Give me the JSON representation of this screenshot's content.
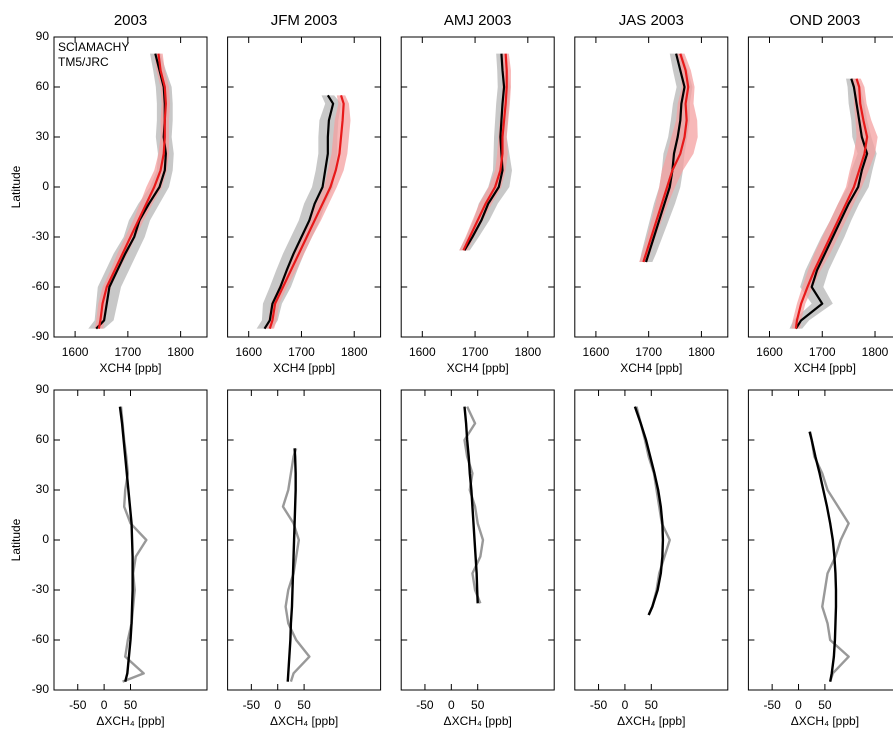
{
  "chart_data": [
    {
      "type": "line",
      "title": "2003",
      "xlabel": "XCH4 [ppb]",
      "ylabel": "Latitude",
      "legend": "upper left",
      "ytick_labels": true,
      "xlim": [
        1560,
        1850
      ],
      "ylim": [
        -90,
        90
      ],
      "xticks": [
        1600,
        1700,
        1800
      ],
      "yticks": [
        -90,
        -60,
        -30,
        0,
        30,
        60,
        90
      ],
      "y": [
        -85,
        -80,
        -70,
        -60,
        -50,
        -40,
        -30,
        -20,
        -10,
        0,
        10,
        20,
        30,
        40,
        50,
        60,
        70,
        80
      ],
      "series": [
        {
          "name": "SCIAMACHY",
          "color": "#000000",
          "band_color": "#c8c8c8",
          "values": [
            1640,
            1655,
            1660,
            1665,
            1680,
            1695,
            1712,
            1722,
            1740,
            1760,
            1770,
            1772,
            1768,
            1770,
            1770,
            1768,
            1760,
            1752
          ],
          "errors": [
            15,
            18,
            20,
            22,
            22,
            22,
            20,
            20,
            20,
            18,
            15,
            15,
            15,
            15,
            15,
            15,
            12,
            10
          ]
        },
        {
          "name": "TM5/JRC",
          "color": "#e8191a",
          "band_color": "#f4a0a0",
          "values": [
            1645,
            1648,
            1652,
            1660,
            1675,
            1690,
            1705,
            1720,
            1735,
            1750,
            1762,
            1768,
            1770,
            1770,
            1772,
            1770,
            1762,
            1758
          ],
          "errors": [
            8,
            8,
            8,
            8,
            8,
            10,
            10,
            10,
            12,
            15,
            12,
            10,
            8,
            8,
            8,
            8,
            8,
            8
          ]
        }
      ]
    },
    {
      "type": "line",
      "title": "JFM 2003",
      "xlabel": "XCH4 [ppb]",
      "ytick_labels": false,
      "xlim": [
        1560,
        1850
      ],
      "ylim": [
        -90,
        90
      ],
      "xticks": [
        1600,
        1700,
        1800
      ],
      "yticks": [
        -90,
        -60,
        -30,
        0,
        30,
        60,
        90
      ],
      "y": [
        -85,
        -80,
        -70,
        -60,
        -50,
        -40,
        -30,
        -20,
        -10,
        0,
        10,
        20,
        30,
        40,
        50,
        55
      ],
      "series": [
        {
          "color": "#000000",
          "band_color": "#c8c8c8",
          "values": [
            1630,
            1640,
            1645,
            1660,
            1672,
            1685,
            1700,
            1715,
            1725,
            1740,
            1745,
            1750,
            1750,
            1752,
            1760,
            1750
          ],
          "errors": [
            15,
            15,
            18,
            20,
            20,
            20,
            20,
            20,
            20,
            20,
            18,
            18,
            18,
            18,
            15,
            12
          ]
        },
        {
          "color": "#e8191a",
          "band_color": "#f4a0a0",
          "values": [
            1640,
            1645,
            1650,
            1665,
            1680,
            1695,
            1710,
            1725,
            1740,
            1755,
            1765,
            1772,
            1775,
            1778,
            1780,
            1775
          ],
          "errors": [
            8,
            8,
            8,
            8,
            10,
            10,
            10,
            12,
            12,
            12,
            15,
            15,
            15,
            15,
            10,
            8
          ]
        }
      ]
    },
    {
      "type": "line",
      "title": "AMJ 2003",
      "xlabel": "XCH4 [ppb]",
      "ytick_labels": false,
      "xlim": [
        1560,
        1850
      ],
      "ylim": [
        -90,
        90
      ],
      "xticks": [
        1600,
        1700,
        1800
      ],
      "yticks": [
        -90,
        -60,
        -30,
        0,
        30,
        60,
        90
      ],
      "y": [
        -38,
        -30,
        -20,
        -10,
        0,
        10,
        20,
        30,
        40,
        50,
        60,
        70,
        80
      ],
      "series": [
        {
          "color": "#000000",
          "band_color": "#c8c8c8",
          "values": [
            1680,
            1695,
            1712,
            1725,
            1745,
            1752,
            1750,
            1748,
            1750,
            1752,
            1755,
            1752,
            1750
          ],
          "errors": [
            10,
            12,
            15,
            18,
            20,
            18,
            15,
            12,
            12,
            12,
            12,
            10,
            10
          ]
        },
        {
          "color": "#e8191a",
          "band_color": "#f4a0a0",
          "values": [
            1678,
            1690,
            1705,
            1720,
            1738,
            1748,
            1752,
            1752,
            1755,
            1758,
            1760,
            1760,
            1758
          ],
          "errors": [
            8,
            8,
            10,
            12,
            12,
            10,
            10,
            8,
            8,
            8,
            8,
            8,
            6
          ]
        }
      ]
    },
    {
      "type": "line",
      "title": "JAS 2003",
      "xlabel": "XCH4 [ppb]",
      "ytick_labels": false,
      "xlim": [
        1560,
        1850
      ],
      "ylim": [
        -90,
        90
      ],
      "xticks": [
        1600,
        1700,
        1800
      ],
      "yticks": [
        -90,
        -60,
        -30,
        0,
        30,
        60,
        90
      ],
      "y": [
        -45,
        -40,
        -30,
        -20,
        -10,
        0,
        10,
        20,
        30,
        40,
        50,
        60,
        70,
        80
      ],
      "series": [
        {
          "color": "#000000",
          "band_color": "#c8c8c8",
          "values": [
            1695,
            1700,
            1710,
            1720,
            1730,
            1740,
            1745,
            1748,
            1755,
            1760,
            1762,
            1768,
            1760,
            1752
          ],
          "errors": [
            12,
            14,
            16,
            18,
            20,
            20,
            20,
            20,
            18,
            18,
            16,
            15,
            14,
            12
          ]
        },
        {
          "color": "#e8191a",
          "band_color": "#f4a0a0",
          "values": [
            1690,
            1695,
            1705,
            1715,
            1725,
            1735,
            1745,
            1760,
            1768,
            1772,
            1770,
            1775,
            1770,
            1760
          ],
          "errors": [
            8,
            8,
            8,
            10,
            12,
            15,
            20,
            25,
            25,
            20,
            15,
            12,
            10,
            8
          ]
        }
      ]
    },
    {
      "type": "line",
      "title": "OND 2003",
      "xlabel": "XCH4 [ppb]",
      "ytick_labels": false,
      "xlim": [
        1560,
        1850
      ],
      "ylim": [
        -90,
        90
      ],
      "xticks": [
        1600,
        1700,
        1800
      ],
      "yticks": [
        -90,
        -60,
        -30,
        0,
        30,
        60,
        90
      ],
      "y": [
        -85,
        -80,
        -70,
        -60,
        -50,
        -40,
        -30,
        -20,
        -10,
        0,
        10,
        20,
        30,
        40,
        50,
        60,
        65
      ],
      "series": [
        {
          "color": "#000000",
          "band_color": "#c8c8c8",
          "values": [
            1650,
            1660,
            1700,
            1680,
            1690,
            1705,
            1720,
            1735,
            1750,
            1768,
            1775,
            1785,
            1775,
            1770,
            1765,
            1760,
            1755
          ],
          "errors": [
            12,
            15,
            20,
            22,
            22,
            22,
            22,
            20,
            20,
            20,
            20,
            18,
            18,
            15,
            15,
            12,
            10
          ]
        },
        {
          "color": "#e8191a",
          "band_color": "#f4a0a0",
          "values": [
            1650,
            1652,
            1660,
            1672,
            1685,
            1700,
            1715,
            1730,
            1745,
            1760,
            1770,
            1780,
            1785,
            1778,
            1772,
            1770,
            1765
          ],
          "errors": [
            8,
            8,
            8,
            10,
            12,
            15,
            15,
            15,
            15,
            15,
            18,
            20,
            20,
            15,
            12,
            10,
            8
          ]
        }
      ]
    },
    {
      "type": "line",
      "xlabel": "ΔXCH₄ [ppb]",
      "ylabel": "Latitude",
      "ytick_labels": true,
      "xlim": [
        -95,
        195
      ],
      "ylim": [
        -90,
        90
      ],
      "xticks": [
        -50,
        0,
        50
      ],
      "yticks": [
        -90,
        -60,
        -30,
        0,
        30,
        60,
        90
      ],
      "y": [
        -85,
        -80,
        -70,
        -60,
        -50,
        -40,
        -30,
        -20,
        -10,
        0,
        10,
        20,
        30,
        40,
        50,
        60,
        70,
        80
      ],
      "series": [
        {
          "color": "#999999",
          "values": [
            35,
            75,
            40,
            45,
            52,
            55,
            58,
            55,
            60,
            80,
            50,
            38,
            40,
            45,
            42,
            38,
            35,
            32
          ]
        },
        {
          "color": "#000000",
          "values": [
            40,
            44,
            47,
            50,
            52,
            53,
            54,
            54,
            54,
            53,
            52,
            49,
            46,
            43,
            40,
            37,
            34,
            30
          ]
        }
      ]
    },
    {
      "type": "line",
      "xlabel": "ΔXCH₄ [ppb]",
      "ytick_labels": false,
      "xlim": [
        -95,
        195
      ],
      "ylim": [
        -90,
        90
      ],
      "xticks": [
        -50,
        0,
        50
      ],
      "yticks": [
        -90,
        -60,
        -30,
        0,
        30,
        60,
        90
      ],
      "y": [
        -85,
        -80,
        -70,
        -60,
        -50,
        -40,
        -30,
        -20,
        -10,
        0,
        10,
        20,
        30,
        40,
        50,
        55
      ],
      "series": [
        {
          "color": "#999999",
          "values": [
            25,
            30,
            60,
            35,
            20,
            15,
            20,
            30,
            35,
            40,
            30,
            10,
            20,
            25,
            30,
            35
          ]
        },
        {
          "color": "#000000",
          "values": [
            19,
            20,
            22,
            24,
            25,
            27,
            28,
            29,
            30,
            31,
            32,
            33,
            34,
            34,
            33,
            32
          ]
        }
      ]
    },
    {
      "type": "line",
      "xlabel": "ΔXCH₄ [ppb]",
      "ytick_labels": false,
      "xlim": [
        -95,
        195
      ],
      "ylim": [
        -90,
        90
      ],
      "xticks": [
        -50,
        0,
        50
      ],
      "yticks": [
        -90,
        -60,
        -30,
        0,
        30,
        60,
        90
      ],
      "y": [
        -38,
        -30,
        -20,
        -10,
        0,
        10,
        20,
        30,
        40,
        50,
        60,
        70,
        80
      ],
      "series": [
        {
          "color": "#999999",
          "values": [
            55,
            45,
            40,
            55,
            60,
            50,
            45,
            35,
            40,
            30,
            25,
            45,
            30
          ]
        },
        {
          "color": "#000000",
          "values": [
            50,
            49,
            48,
            46,
            44,
            42,
            40,
            38,
            35,
            33,
            30,
            28,
            25
          ]
        }
      ]
    },
    {
      "type": "line",
      "xlabel": "ΔXCH₄ [ppb]",
      "ytick_labels": false,
      "xlim": [
        -95,
        195
      ],
      "ylim": [
        -90,
        90
      ],
      "xticks": [
        -50,
        0,
        50
      ],
      "yticks": [
        -90,
        -60,
        -30,
        0,
        30,
        60,
        90
      ],
      "y": [
        -45,
        -40,
        -30,
        -20,
        -10,
        0,
        10,
        20,
        30,
        40,
        50,
        60,
        70,
        80
      ],
      "series": [
        {
          "color": "#999999",
          "values": [
            45,
            52,
            60,
            65,
            75,
            85,
            70,
            65,
            60,
            55,
            45,
            38,
            30,
            22
          ]
        },
        {
          "color": "#000000",
          "values": [
            45,
            52,
            62,
            68,
            71,
            72,
            71,
            68,
            63,
            56,
            48,
            40,
            30,
            19
          ]
        }
      ]
    },
    {
      "type": "line",
      "xlabel": "ΔXCH₄ [ppb]",
      "ytick_labels": false,
      "xlim": [
        -95,
        195
      ],
      "ylim": [
        -90,
        90
      ],
      "xticks": [
        -50,
        0,
        50
      ],
      "yticks": [
        -90,
        -60,
        -30,
        0,
        30,
        60,
        90
      ],
      "y": [
        -85,
        -80,
        -70,
        -60,
        -50,
        -40,
        -30,
        -20,
        -10,
        0,
        10,
        20,
        30,
        40,
        50,
        60,
        65
      ],
      "series": [
        {
          "color": "#999999",
          "values": [
            60,
            65,
            95,
            60,
            55,
            45,
            50,
            55,
            70,
            80,
            95,
            75,
            55,
            45,
            30,
            25,
            22
          ]
        },
        {
          "color": "#000000",
          "values": [
            60,
            63,
            67,
            69,
            70,
            71,
            71,
            70,
            68,
            65,
            60,
            54,
            47,
            40,
            32,
            25,
            21
          ]
        }
      ]
    }
  ]
}
